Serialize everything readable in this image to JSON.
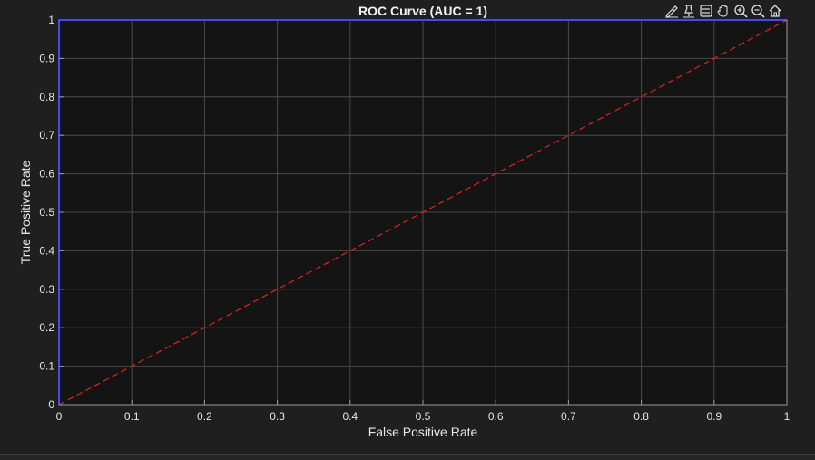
{
  "toolbar": {
    "icons": [
      "brush-icon",
      "datatip-icon",
      "restore-view-icon",
      "pan-icon",
      "zoom-in-icon",
      "zoom-out-icon",
      "home-icon"
    ]
  },
  "colors": {
    "background": "#1f1f1f",
    "axes_bg": "#141414",
    "grid": "#4a4a4a",
    "text": "#e6e6e6",
    "roc_curve": "#0000ff",
    "reference_line": "#d62020"
  },
  "chart_data": {
    "type": "line",
    "title": "ROC Curve (AUC = 1)",
    "xlabel": "False Positive Rate",
    "ylabel": "True Positive Rate",
    "xlim": [
      0,
      1
    ],
    "ylim": [
      0,
      1
    ],
    "xticks": [
      "0",
      "0.1",
      "0.2",
      "0.3",
      "0.4",
      "0.5",
      "0.6",
      "0.7",
      "0.8",
      "0.9",
      "1"
    ],
    "yticks": [
      "0",
      "0.1",
      "0.2",
      "0.3",
      "0.4",
      "0.5",
      "0.6",
      "0.7",
      "0.8",
      "0.9",
      "1"
    ],
    "grid": true,
    "series": [
      {
        "style": "solid",
        "color": "#0000ff",
        "x": [
          0,
          0,
          1
        ],
        "y": [
          0,
          1,
          1
        ]
      },
      {
        "style": "dashed",
        "color": "#d62020",
        "x": [
          0,
          1
        ],
        "y": [
          0,
          1
        ]
      }
    ]
  }
}
